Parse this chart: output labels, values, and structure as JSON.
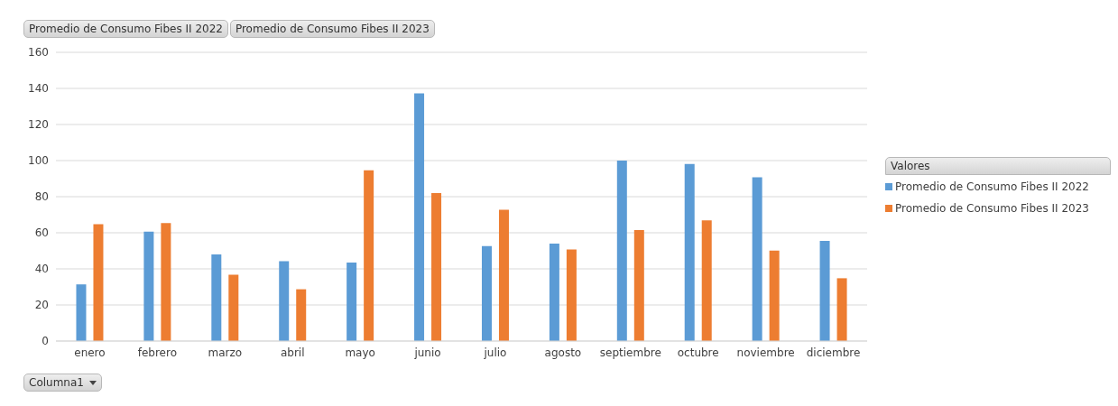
{
  "chart_data": {
    "type": "bar",
    "categories": [
      "enero",
      "febrero",
      "marzo",
      "abril",
      "mayo",
      "junio",
      "julio",
      "agosto",
      "septiembre",
      "octubre",
      "noviembre",
      "diciembre"
    ],
    "series": [
      {
        "name": "Promedio de Consumo Fibes II 2022",
        "color": "#5b9bd5",
        "values": [
          31.4,
          60.6,
          48,
          44.2,
          43.5,
          137.2,
          52.6,
          54,
          100,
          98.1,
          90.8,
          55.5
        ]
      },
      {
        "name": "Promedio de Consumo Fibes II 2023",
        "color": "#ed7d31",
        "values": [
          64.7,
          65.4,
          36.8,
          28.7,
          94.6,
          82,
          72.8,
          50.8,
          61.5,
          66.9,
          50.1,
          34.8
        ]
      }
    ],
    "ylim": [
      0,
      160
    ],
    "yticks": [
      0,
      20,
      40,
      60,
      80,
      100,
      120,
      140,
      160
    ],
    "grid": "y",
    "legend": "right",
    "legend_title": "Valores",
    "annotations": [
      "Promedio de Consumo Fibes II 2022",
      "Promedio de Consumo Fibes II 2023",
      "Columna1"
    ]
  }
}
